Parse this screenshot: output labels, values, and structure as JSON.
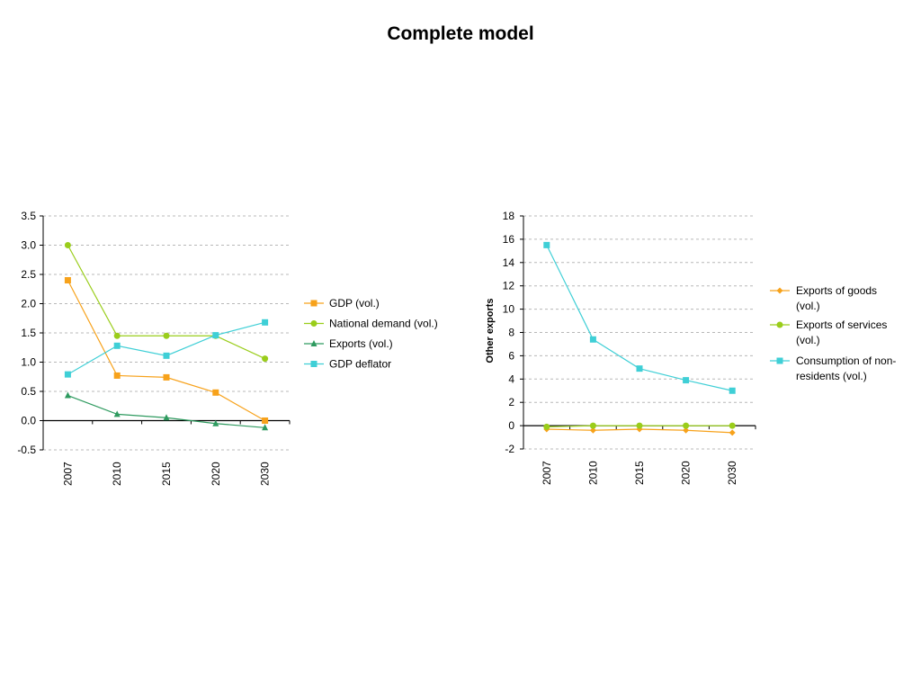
{
  "page": {
    "title": "Complete model"
  },
  "chart_data": [
    {
      "type": "line",
      "title": "",
      "xlabel": "",
      "ylabel": "",
      "categories": [
        "2007",
        "2010",
        "2015",
        "2020",
        "2030"
      ],
      "ylim": [
        -0.5,
        3.5
      ],
      "yticks": [
        "-0.5",
        "0.0",
        "0.5",
        "1.0",
        "1.5",
        "2.0",
        "2.5",
        "3.0",
        "3.5"
      ],
      "grid": true,
      "legend_position": "right",
      "series": [
        {
          "name": "GDP (vol.)",
          "color": "#f7a21b",
          "marker": "square",
          "values": [
            2.4,
            0.77,
            0.74,
            0.48,
            0.0
          ]
        },
        {
          "name": "National demand (vol.)",
          "color": "#9acd1b",
          "marker": "circle",
          "values": [
            3.0,
            1.45,
            1.45,
            1.45,
            1.06
          ]
        },
        {
          "name": "Exports (vol.)",
          "color": "#2e9a5f",
          "marker": "triangle",
          "values": [
            0.43,
            0.11,
            0.05,
            -0.05,
            -0.12
          ]
        },
        {
          "name": "GDP deflator",
          "color": "#3fcfd6",
          "marker": "square",
          "values": [
            0.79,
            1.28,
            1.11,
            1.46,
            1.68
          ]
        }
      ]
    },
    {
      "type": "line",
      "title": "",
      "xlabel": "",
      "ylabel": "Other exports",
      "categories": [
        "2007",
        "2010",
        "2015",
        "2020",
        "2030"
      ],
      "ylim": [
        -2,
        18
      ],
      "yticks": [
        "-2",
        "0",
        "2",
        "4",
        "6",
        "8",
        "10",
        "12",
        "14",
        "16",
        "18"
      ],
      "grid": true,
      "legend_position": "right",
      "series": [
        {
          "name": "Exports of goods (vol.)",
          "color": "#f7a21b",
          "marker": "diamond",
          "values": [
            -0.3,
            -0.4,
            -0.3,
            -0.4,
            -0.6
          ]
        },
        {
          "name": "Exports of services (vol.)",
          "color": "#9acd1b",
          "marker": "circle",
          "values": [
            -0.1,
            0.0,
            0.0,
            0.0,
            0.0
          ]
        },
        {
          "name": "Consumption of non-residents (vol.)",
          "color": "#3fcfd6",
          "marker": "square",
          "values": [
            15.5,
            7.4,
            4.9,
            3.9,
            3.0
          ]
        }
      ]
    }
  ]
}
